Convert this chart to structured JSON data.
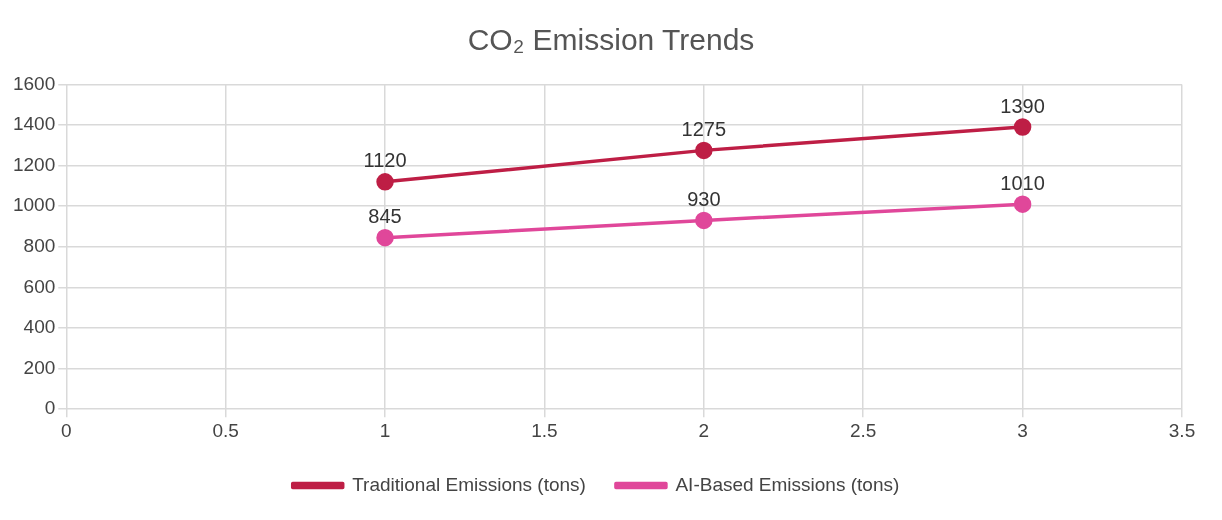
{
  "chart_data": {
    "type": "line",
    "title": "CO₂ Emission Trends",
    "x": [
      1,
      2,
      3
    ],
    "series": [
      {
        "name": "Traditional Emissions (tons)",
        "color": "#be1e45",
        "values": [
          1120,
          1275,
          1390
        ]
      },
      {
        "name": "AI-Based Emissions (tons)",
        "color": "#e0479a",
        "values": [
          845,
          930,
          1010
        ]
      }
    ],
    "xlim": [
      0,
      3.5
    ],
    "xticks": [
      0,
      0.5,
      1,
      1.5,
      2,
      2.5,
      3,
      3.5
    ],
    "ylim": [
      0,
      1600
    ],
    "yticks": [
      0,
      200,
      400,
      600,
      800,
      1000,
      1200,
      1400,
      1600
    ],
    "grid": true,
    "legend": "bottom",
    "marker": "circle",
    "line_style": "solid",
    "data_labels": true
  }
}
